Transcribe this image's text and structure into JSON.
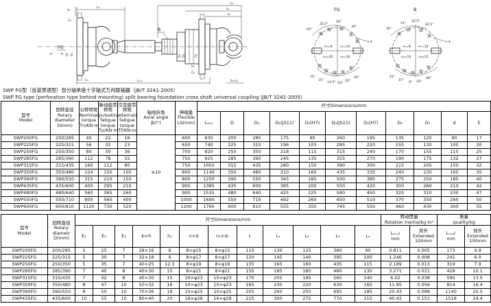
{
  "doc": {
    "title_cn": "SWP FG型（反装贯通型）剖分轴承座十字轴式万向联轴器（JB/T 3241-2005）",
    "title_en": "SWP FG type (perforation type behind mounting) split bearing foundation cross shaft universal coupling (JB/T 3241-2005)"
  },
  "drawing": {
    "labels": {
      "h1": "h₁",
      "L1": "L₁",
      "C2": "C₂",
      "FG": "FG",
      "B": "B",
      "L4": "L₄",
      "L3": "L₃",
      "L2": "L₂",
      "Lmin": "Lₘᵢₙ",
      "S_L5": "S=L₅",
      "h2": "h₂",
      "h_small": "h",
      "C4": "C₄",
      "C5": "C₅",
      "d_rot": "d",
      "D5_rot": "D₅",
      "D4_rot": "D₄",
      "D_rot": "D",
      "D2_rot": "D₂",
      "D3_rot": "D₃",
      "D1_rot": "D₁"
    },
    "fg_circle": {
      "title": "FG",
      "n_top_left": "n₁=8",
      "n_top_right": "n₁=10",
      "n_bot_left": "n₂=22",
      "n_bot_right": "n₂=16",
      "top_angles": [
        "45°",
        "22.5°",
        "30°",
        "36°"
      ],
      "bottom_angles": [
        "15°",
        "15°",
        "13.5°",
        "10°",
        "20°",
        "20°"
      ],
      "leader": "n-d"
    },
    "b_circle": {
      "title": "B",
      "n_top_left": "n₁=8",
      "n_top_right": "n₁=10",
      "n_bot_left": "n₂=14",
      "n_bot_right": "n₂=12",
      "top_angles": [
        "36°",
        "15°",
        "22.5°",
        "22.5°"
      ],
      "bottom_angles": [
        "15°",
        "15°",
        "9°",
        "18°",
        "18°"
      ],
      "leader": "n-d"
    }
  },
  "table1": {
    "h": {
      "model": "型号\nModel",
      "rotary": "回转直径\nRotary\ndiameter\nD(mm)",
      "tn": "公称转矩\nNominal\ntorque\nTn/KN·m",
      "tp": "脉动疲劳转矩\npulsating\nfatigue\ntorque\nTp/KN·m",
      "tf": "交变疲劳转矩\nalternating\nfatigue\ntorque\nTf/KN·m",
      "beta": "轴线折角\nAxial angle\nβ/(°)",
      "ls": "伸缩量\nFlexible\nLS(mm)",
      "dims": "尺寸Dimensions/mm"
    },
    "sub": [
      "Lₘᵢₙ",
      "D",
      "D₁",
      "D₂(JS11)",
      "D₂(H7)",
      "D₃(JS11)",
      "D₃(H7)",
      "D₄",
      "D₅",
      "d",
      "E"
    ],
    "axial_angle_value": "≤10",
    "rows": [
      [
        "SWP200FG",
        "200/285",
        "40",
        "22",
        "16",
        "600",
        "630",
        "200",
        "285",
        "175",
        "90",
        "260",
        "195",
        "135",
        "120",
        "90",
        "17"
      ],
      [
        "SWP225FG",
        "225/315",
        "56",
        "32",
        "23",
        "650",
        "740",
        "225",
        "315",
        "196",
        "105",
        "285",
        "220",
        "155",
        "130",
        "100",
        "20"
      ],
      [
        "SWP250FG",
        "250/350",
        "80",
        "50",
        "36",
        "700",
        "820",
        "250",
        "350",
        "218",
        "115",
        "315",
        "240",
        "170",
        "155",
        "115",
        "25"
      ],
      [
        "SWP285FG",
        "285/390",
        "112",
        "78",
        "55",
        "750",
        "925",
        "285",
        "390",
        "245",
        "135",
        "355",
        "270",
        "190",
        "175",
        "132",
        "27"
      ],
      [
        "SWP315FG",
        "315/435",
        "160",
        "112",
        "80",
        "750",
        "1050",
        "315",
        "435",
        "280",
        "150",
        "390",
        "300",
        "215",
        "205",
        "150",
        "32"
      ],
      [
        "SWP350FG",
        "350/480",
        "224",
        "150",
        "105",
        "800",
        "1140",
        "350",
        "480",
        "310",
        "165",
        "435",
        "335",
        "240",
        "230",
        "165",
        "35"
      ],
      [
        "SWP390FG",
        "390/550",
        "315",
        "210",
        "150",
        "800",
        "1250",
        "390",
        "550",
        "345",
        "185",
        "500",
        "385",
        "275",
        "250",
        "185",
        "40"
      ],
      [
        "SWP435FG",
        "435/600",
        "400",
        "295",
        "210",
        "900",
        "1385",
        "435",
        "600",
        "385",
        "200",
        "550",
        "420",
        "300",
        "280",
        "210",
        "42"
      ],
      [
        "SWP480FG",
        "480/640",
        "560",
        "365",
        "260",
        "900",
        "1535",
        "480",
        "640",
        "425",
        "225",
        "580",
        "450",
        "325",
        "310",
        "230",
        "47"
      ],
      [
        "SWP550FG",
        "550/710",
        "800",
        "560",
        "400",
        "1000",
        "1690",
        "550",
        "710",
        "492",
        "260",
        "650",
        "510",
        "370",
        "350",
        "260",
        "50"
      ],
      [
        "SWP600FG",
        "600/810",
        "1120",
        "730",
        "520",
        "1200",
        "1760",
        "600",
        "810",
        "555",
        "350",
        "745",
        "550",
        "460",
        "430",
        "300",
        "55"
      ]
    ]
  },
  "table2": {
    "h": {
      "model": "型号\nModel",
      "rotary": "回转直径\nRotary\ndiametr\nD(mm)",
      "dims": "尺寸Dimensions/mm",
      "inertia": "转动惯量\nRotation Inertia/kg·m²",
      "mass": "质量\nquality/kg",
      "lmin_mm": "Lₘᵢₙ/\nmm",
      "ext": "加长\nExtended\n100mm"
    },
    "sub": [
      "E₁",
      "E₂",
      "E₃",
      "b×h",
      "h₁",
      "n×d",
      "n₁×d₁",
      "L",
      "L₁",
      "L₂",
      "L₃",
      "L₄"
    ],
    "rows": [
      [
        "SWP200FG",
        "200/285",
        "5",
        "25",
        "7",
        "28×16",
        "8",
        "8×φ15",
        "8×φ15",
        "110",
        "130",
        "125",
        "360",
        "90",
        "0.811",
        "0.005",
        "173",
        "4.9"
      ],
      [
        "SWP225FG",
        "225/315",
        "5",
        "30",
        "7",
        "32×18",
        "9",
        "8×φ17",
        "8×φ17",
        "120",
        "145",
        "140",
        "395",
        "100",
        "1.246",
        "0.008",
        "241",
        "6.0"
      ],
      [
        "SWP250FG",
        "250/350",
        "5",
        "35",
        "7",
        "40×25",
        "12.5",
        "8×φ19",
        "8×φ19",
        "135",
        "165",
        "160",
        "435",
        "115",
        "2.189",
        "0.013",
        "319",
        "7.9"
      ],
      [
        "SWP285FG",
        "285/390",
        "7",
        "40",
        "8",
        "40×30",
        "15",
        "8×φ21",
        "8×φ21",
        "150",
        "185",
        "180",
        "480",
        "130",
        "3.271",
        "0.021",
        "428",
        "10.1"
      ],
      [
        "SWP315FG",
        "315/435",
        "7",
        "42",
        "8",
        "40×30",
        "15",
        "10×φ23",
        "10×φ23",
        "170",
        "205",
        "195",
        "565",
        "140",
        "6.02",
        "0.038",
        "590",
        "13.5"
      ],
      [
        "SWP350FG",
        "350/480",
        "8",
        "47",
        "10",
        "50×32",
        "16",
        "10×φ23",
        "10×φ23",
        "185",
        "230",
        "220",
        "630",
        "160",
        "11.95",
        "0.056",
        "814",
        "16.4"
      ],
      [
        "SWP390FG",
        "390/550",
        "8",
        "50",
        "10",
        "70×36",
        "18",
        "10×φ25",
        "10×φ25",
        "205",
        "260",
        "250",
        "695",
        "185",
        "20.43",
        "0.088",
        "1140",
        "20.5"
      ],
      [
        "SWP435FG",
        "435/600",
        "10",
        "55",
        "10",
        "80×40",
        "20",
        "16×φ28",
        "16×φ28",
        "225",
        "300",
        "275",
        "770",
        "215",
        "40.42",
        "0.151",
        "1518",
        "24.4"
      ]
    ]
  }
}
